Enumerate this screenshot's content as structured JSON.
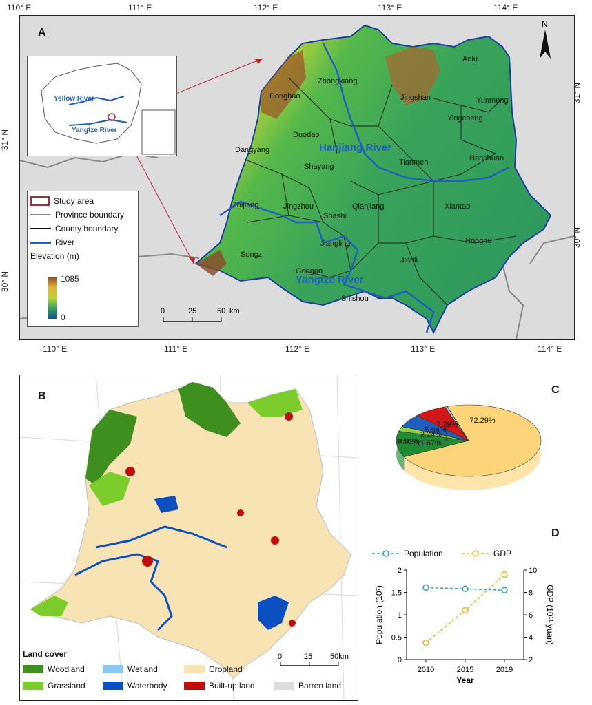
{
  "panel_a": {
    "letter": "A",
    "lon_ticks_top": [
      "110° E",
      "111° E",
      "112° E",
      "113° E",
      "114° E"
    ],
    "lon_ticks_bottom": [
      "110° E",
      "111° E",
      "112° E",
      "113° E",
      "114° E"
    ],
    "lat_ticks_left": [
      "31° N",
      "30° N"
    ],
    "lat_ticks_right": [
      "31° N",
      "30° N"
    ],
    "north": "N",
    "counties": [
      "Anlu",
      "Zhongxiang",
      "Jingshan",
      "Dongbao",
      "Yunmeng",
      "Yingcheng",
      "Duodao",
      "Dangyang",
      "Hanchuan",
      "Tianmen",
      "Shayang",
      "Zhijiang",
      "Jingzhou",
      "Shashi",
      "Qianjiang",
      "Xiantao",
      "Jiangling",
      "Songzi",
      "Gongan",
      "Jianli",
      "Honghu",
      "Shishou"
    ],
    "rivers": [
      "Hanjiang River",
      "Yangtze River"
    ],
    "inset_rivers": [
      "Yellow River",
      "Yangtze River"
    ],
    "legend": {
      "study_area": "Study area",
      "province": "Province boundary",
      "county": "County boundary",
      "river": "River",
      "elevation_title": "Elevation (m)",
      "elev_max": "1085",
      "elev_min": "0"
    },
    "scale": {
      "ticks": [
        "0",
        "25",
        "50"
      ],
      "unit": "km"
    },
    "colors": {
      "river": "#1f5fbf",
      "study_area": "#c0272d",
      "high": "#8b4a2b",
      "low": "#2e8b57"
    }
  },
  "panel_b": {
    "letter": "B",
    "legend_title": "Land cover",
    "classes": [
      {
        "label": "Woodland",
        "color": "#3f8f1f"
      },
      {
        "label": "Wetland",
        "color": "#8ec8f2"
      },
      {
        "label": "Cropland",
        "color": "#f7e3b4"
      },
      {
        "label": "Grassland",
        "color": "#7ccc2c"
      },
      {
        "label": "Waterbody",
        "color": "#0b4fc0"
      },
      {
        "label": "Built-up land",
        "color": "#c00d0d"
      },
      {
        "label": "Barren land",
        "color": "#dcdcdc"
      }
    ],
    "scale": {
      "ticks": [
        "0",
        "25",
        "50km"
      ]
    }
  },
  "panel_c": {
    "letter": "C",
    "chart_data": {
      "type": "pie",
      "slices": [
        {
          "label": "Cropland",
          "value": 72.29,
          "text": "72.29%",
          "color": "#fcd57a"
        },
        {
          "label": "Woodland",
          "value": 11.67,
          "text": "11.67%",
          "color": "#1e8c32"
        },
        {
          "label": "Grassland",
          "value": 2.24,
          "text": "2.24%",
          "color": "#8fcf40"
        },
        {
          "label": "Waterbody",
          "value": 5.94,
          "text": "5.94%",
          "color": "#1f5fc0"
        },
        {
          "label": "Built-up land",
          "value": 7.29,
          "text": "7.29%",
          "color": "#d01818"
        },
        {
          "label": "Wetland",
          "value": 0.56,
          "text": "0.56%",
          "color": "#8ec8f2"
        },
        {
          "label": "Barren land",
          "value": 0.01,
          "text": "0.01%",
          "color": "#dcdcdc"
        }
      ]
    }
  },
  "panel_d": {
    "letter": "D",
    "chart_data": {
      "type": "line",
      "x": [
        "2010",
        "2015",
        "2019"
      ],
      "xlabel": "Year",
      "ylabel_left": "Population (10⁷)",
      "ylabel_right": "GDP (10¹¹ yuan)",
      "ylim_left": [
        0,
        2
      ],
      "ylim_right": [
        2,
        10
      ],
      "yticks_left": [
        "0",
        "0.5",
        "1",
        "1.5",
        "2"
      ],
      "yticks_right": [
        "2",
        "4",
        "6",
        "8",
        "10"
      ],
      "series": [
        {
          "name": "Population",
          "axis": "left",
          "values": [
            1.61,
            1.58,
            1.55
          ],
          "color": "#2a9fd6"
        },
        {
          "name": "GDP",
          "axis": "right",
          "values": [
            3.5,
            6.4,
            9.6
          ],
          "color": "#f0b41e"
        }
      ],
      "legend_position": "top"
    }
  }
}
